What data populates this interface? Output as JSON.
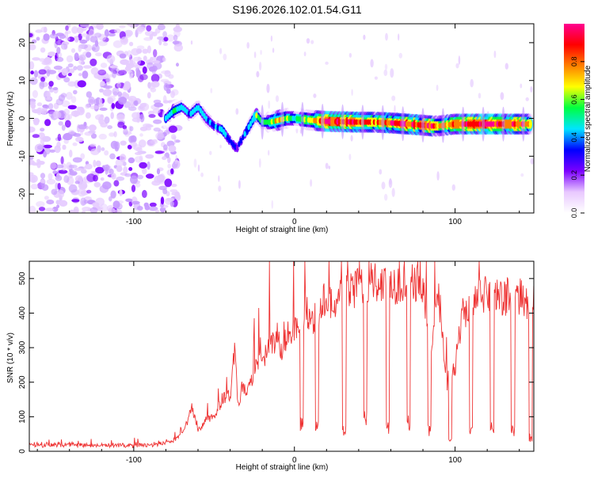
{
  "title": "S196.2026.102.01.54.G11",
  "chart_data": [
    {
      "type": "heatmap",
      "panel": "spectrogram",
      "xlabel": "Height of straight line (km)",
      "ylabel": "Frequency (Hz)",
      "xlim": [
        -165,
        149
      ],
      "ylim": [
        -25,
        25
      ],
      "xticks": [
        -100,
        0,
        100
      ],
      "yticks": [
        -20,
        -10,
        0,
        10,
        20
      ],
      "colorbar": {
        "label": "Normalized spectral amplitude",
        "range": [
          0,
          1
        ],
        "ticks": [
          0.0,
          0.2,
          0.4,
          0.6,
          0.8
        ],
        "tick_labels": [
          "0.0",
          "0.2",
          "0.4",
          "0.6",
          "0.8"
        ],
        "colormap": [
          "#ffffff",
          "#e8c8ff",
          "#7b00ff",
          "#0000ff",
          "#00e5ff",
          "#00ff40",
          "#ffff00",
          "#ff8000",
          "#ff0000",
          "#ff0090"
        ]
      },
      "ridge": {
        "x": [
          -80,
          -75,
          -70,
          -65,
          -60,
          -55,
          -50,
          -45,
          -40,
          -36,
          -32,
          -28,
          -24,
          -20,
          -15,
          -10,
          -5,
          0,
          10,
          20,
          30,
          40,
          50,
          60,
          70,
          80,
          85,
          90,
          100,
          110,
          120,
          130,
          140,
          148
        ],
        "y": [
          0,
          2,
          3,
          1,
          3,
          0,
          -2,
          -3,
          -6,
          -8,
          -5,
          -2,
          1,
          -1,
          -1,
          -0.5,
          0,
          0,
          -0.5,
          -0.8,
          -0.9,
          -1,
          -1,
          -1.2,
          -1.5,
          -1.8,
          -2,
          -2,
          -1.5,
          -1.5,
          -1.5,
          -1.5,
          -1.5,
          -1.5
        ],
        "amplitude": [
          0.4,
          0.5,
          0.45,
          0.4,
          0.45,
          0.4,
          0.35,
          0.4,
          0.35,
          0.3,
          0.35,
          0.45,
          0.55,
          0.5,
          0.6,
          0.7,
          0.6,
          0.5,
          0.65,
          0.9,
          0.9,
          0.85,
          0.8,
          0.85,
          0.9,
          0.85,
          0.9,
          0.7,
          0.85,
          0.9,
          0.95,
          0.85,
          0.9,
          0.7
        ]
      },
      "noise_region_x": [
        -165,
        -78
      ]
    },
    {
      "type": "line",
      "panel": "snr",
      "xlabel": "Height of straight line (km)",
      "ylabel": "SNR (10 * v/v)",
      "xlim": [
        -165,
        149
      ],
      "ylim": [
        0,
        550
      ],
      "xticks": [
        -100,
        0,
        100
      ],
      "yticks": [
        0,
        100,
        200,
        300,
        400,
        500
      ],
      "color": "#ee3333",
      "series": [
        {
          "name": "SNR",
          "x": [
            -165,
            -140,
            -120,
            -100,
            -90,
            -80,
            -75,
            -70,
            -66,
            -64,
            -60,
            -55,
            -50,
            -45,
            -40,
            -37,
            -35,
            -32,
            -30,
            -25,
            -20,
            -15,
            -10,
            -8,
            -5,
            0,
            5,
            7,
            10,
            15,
            20,
            25,
            30,
            35,
            40,
            45,
            50,
            55,
            60,
            65,
            70,
            75,
            80,
            85,
            90,
            95,
            100,
            105,
            110,
            115,
            120,
            125,
            130,
            135,
            140,
            145,
            149
          ],
          "values": [
            20,
            18,
            17,
            18,
            20,
            25,
            30,
            50,
            90,
            130,
            60,
            90,
            100,
            150,
            160,
            300,
            120,
            200,
            150,
            240,
            260,
            300,
            340,
            280,
            330,
            360,
            390,
            420,
            380,
            400,
            450,
            420,
            470,
            460,
            480,
            490,
            500,
            480,
            490,
            480,
            470,
            490,
            480,
            300,
            450,
            200,
            250,
            400,
            430,
            440,
            460,
            450,
            440,
            460,
            450,
            420,
            440
          ]
        }
      ],
      "dropouts": [
        {
          "x": 4.5,
          "low": 80
        },
        {
          "x": 14,
          "low": 70
        },
        {
          "x": 31,
          "low": 60
        },
        {
          "x": 44,
          "low": 90
        },
        {
          "x": 58,
          "low": 70
        },
        {
          "x": 71,
          "low": 80
        },
        {
          "x": 84,
          "low": 60
        },
        {
          "x": 97,
          "low": 30
        },
        {
          "x": 110,
          "low": 60
        },
        {
          "x": 123,
          "low": 70
        },
        {
          "x": 136,
          "low": 60
        },
        {
          "x": 147,
          "low": 40
        }
      ]
    }
  ]
}
